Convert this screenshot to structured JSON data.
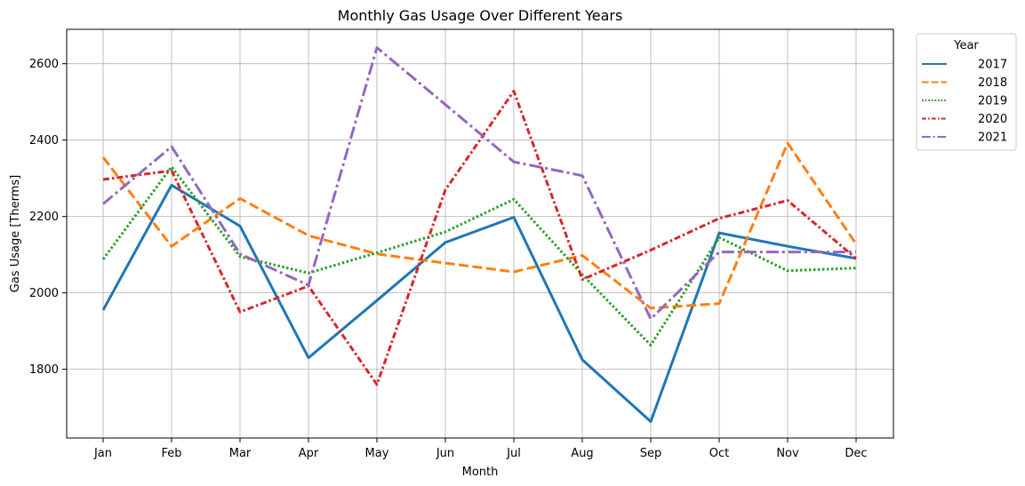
{
  "chart_data": {
    "type": "line",
    "title": "Monthly Gas Usage Over Different Years",
    "xlabel": "Month",
    "ylabel": "Gas Usage [Therms]",
    "categories": [
      "Jan",
      "Feb",
      "Mar",
      "Apr",
      "May",
      "Jun",
      "Jul",
      "Aug",
      "Sep",
      "Oct",
      "Nov",
      "Dec"
    ],
    "ylim": [
      1620,
      2690
    ],
    "yticks": [
      1800,
      2000,
      2200,
      2400,
      2600
    ],
    "grid": true,
    "legend": {
      "title": "Year",
      "placement": "outside-top-right"
    },
    "series": [
      {
        "name": "2017",
        "color": "#1f77b4",
        "style": "solid",
        "values": [
          1955,
          2282,
          2175,
          1830,
          1980,
          2132,
          2198,
          1825,
          1663,
          2157,
          2122,
          2090
        ]
      },
      {
        "name": "2018",
        "color": "#ff7f0e",
        "style": "dashed",
        "values": [
          2355,
          2122,
          2247,
          2150,
          2102,
          2078,
          2055,
          2098,
          1960,
          1972,
          2392,
          2128
        ]
      },
      {
        "name": "2019",
        "color": "#2ca02c",
        "style": "dotted",
        "values": [
          2088,
          2330,
          2095,
          2052,
          2105,
          2160,
          2245,
          2048,
          1863,
          2145,
          2058,
          2065
        ]
      },
      {
        "name": "2020",
        "color": "#d62728",
        "style": "dashdot-short",
        "values": [
          2297,
          2320,
          1950,
          2018,
          1760,
          2270,
          2528,
          2035,
          2112,
          2195,
          2242,
          2090
        ]
      },
      {
        "name": "2021",
        "color": "#9467bd",
        "style": "dashdot",
        "values": [
          2233,
          2383,
          2102,
          2020,
          2642,
          2493,
          2343,
          2307,
          1932,
          2107,
          2107,
          2107
        ]
      }
    ]
  }
}
